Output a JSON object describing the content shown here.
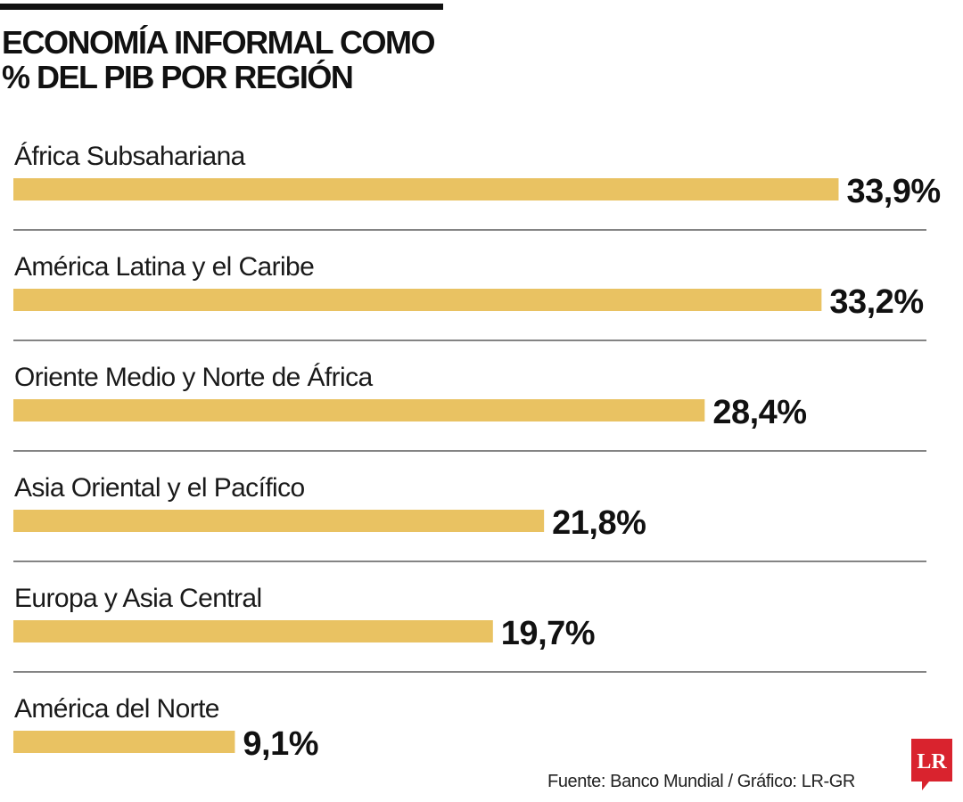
{
  "chart_data": {
    "type": "bar",
    "orientation": "horizontal",
    "title": "ECONOMÍA INFORMAL COMO\n% DEL PIB POR REGIÓN",
    "categories": [
      "África Subsahariana",
      "América Latina y el Caribe",
      "Oriente Medio y Norte de África",
      "Asia Oriental y el Pacífico",
      "Europa y Asia Central",
      "América del Norte"
    ],
    "values": [
      33.9,
      33.2,
      28.4,
      21.8,
      19.7,
      9.1
    ],
    "value_labels": [
      "33,9%",
      "33,2%",
      "28,4%",
      "21,8%",
      "19,7%",
      "9,1%"
    ],
    "unit": "%",
    "grid": false,
    "legend": "none",
    "bar_color": "#e9c262"
  },
  "source": "Fuente: Banco Mundial / Gráfico: LR-GR",
  "logo": {
    "text": "LR",
    "color": "#d9232e"
  }
}
